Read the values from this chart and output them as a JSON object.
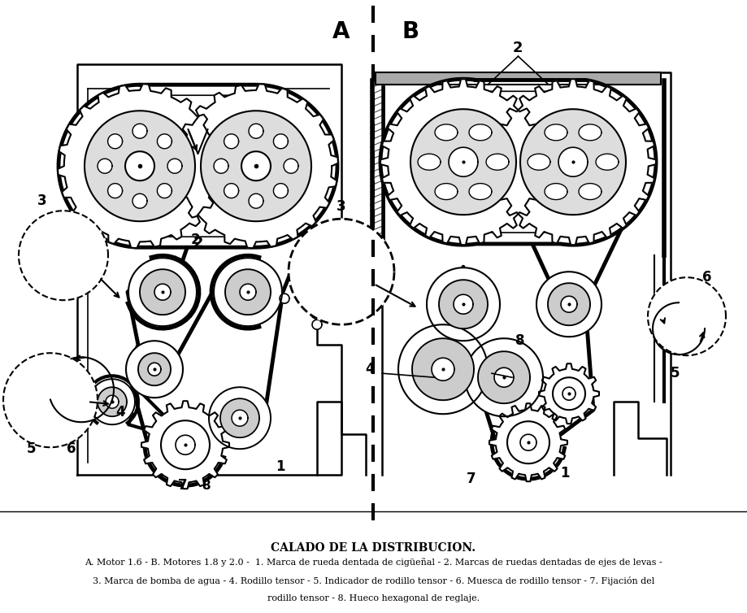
{
  "title": "CALADO DE LA DISTRIBUCION.",
  "label_A": "A",
  "label_B": "B",
  "caption_line1": "A. Motor 1.6 - B. Motores 1.8 y 2.0 -  1. Marca de rueda dentada de cigüeñal - 2. Marcas de ruedas dentadas de ejes de levas -",
  "caption_line2": "3. Marca de bomba de agua - 4. Rodillo tensor - 5. Indicador de rodillo tensor - 6. Muesca de rodillo tensor - 7. Fijación del",
  "caption_line3": "rodillo tensor - 8. Hueco hexagonal de reglaje.",
  "bg_color": "#ffffff",
  "line_color": "#000000",
  "fig_width": 9.19,
  "fig_height": 7.54,
  "dpi": 100
}
